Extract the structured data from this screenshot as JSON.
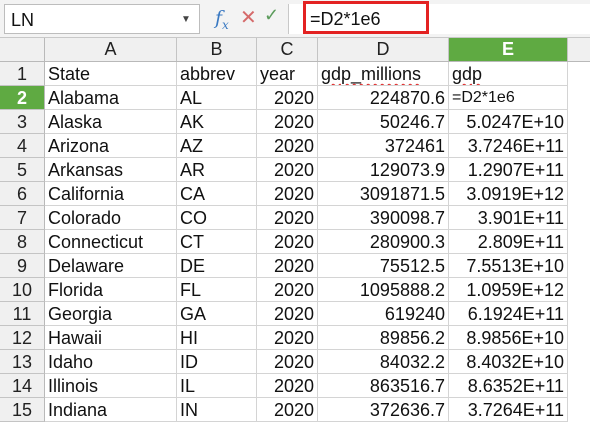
{
  "formula_bar": {
    "name_box": "LN",
    "fx_symbol": "f",
    "fx_sub": "x",
    "cancel_symbol": "✕",
    "accept_symbol": "✓",
    "formula": "=D2*1e6"
  },
  "columns": [
    "A",
    "B",
    "C",
    "D",
    "E"
  ],
  "active_column": "E",
  "active_row": "2",
  "rows": [
    {
      "num": "1",
      "cells": [
        "State",
        "abbrev",
        "year",
        "gdp_millions",
        "gdp"
      ]
    },
    {
      "num": "2",
      "cells": [
        "Alabama",
        "AL",
        "2020",
        "224870.6",
        "=D2*1e6"
      ]
    },
    {
      "num": "3",
      "cells": [
        "Alaska",
        "AK",
        "2020",
        "50246.7",
        "5.0247E+10"
      ]
    },
    {
      "num": "4",
      "cells": [
        "Arizona",
        "AZ",
        "2020",
        "372461",
        "3.7246E+11"
      ]
    },
    {
      "num": "5",
      "cells": [
        "Arkansas",
        "AR",
        "2020",
        "129073.9",
        "1.2907E+11"
      ]
    },
    {
      "num": "6",
      "cells": [
        "California",
        "CA",
        "2020",
        "3091871.5",
        "3.0919E+12"
      ]
    },
    {
      "num": "7",
      "cells": [
        "Colorado",
        "CO",
        "2020",
        "390098.7",
        "3.901E+11"
      ]
    },
    {
      "num": "8",
      "cells": [
        "Connecticut",
        "CT",
        "2020",
        "280900.3",
        "2.809E+11"
      ]
    },
    {
      "num": "9",
      "cells": [
        "Delaware",
        "DE",
        "2020",
        "75512.5",
        "7.5513E+10"
      ]
    },
    {
      "num": "10",
      "cells": [
        "Florida",
        "FL",
        "2020",
        "1095888.2",
        "1.0959E+12"
      ]
    },
    {
      "num": "11",
      "cells": [
        "Georgia",
        "GA",
        "2020",
        "619240",
        "6.1924E+11"
      ]
    },
    {
      "num": "12",
      "cells": [
        "Hawaii",
        "HI",
        "2020",
        "89856.2",
        "8.9856E+10"
      ]
    },
    {
      "num": "13",
      "cells": [
        "Idaho",
        "ID",
        "2020",
        "84032.2",
        "8.4032E+10"
      ]
    },
    {
      "num": "14",
      "cells": [
        "Illinois",
        "IL",
        "2020",
        "863516.7",
        "8.6352E+11"
      ]
    },
    {
      "num": "15",
      "cells": [
        "Indiana",
        "IN",
        "2020",
        "372636.7",
        "3.7264E+11"
      ]
    }
  ]
}
